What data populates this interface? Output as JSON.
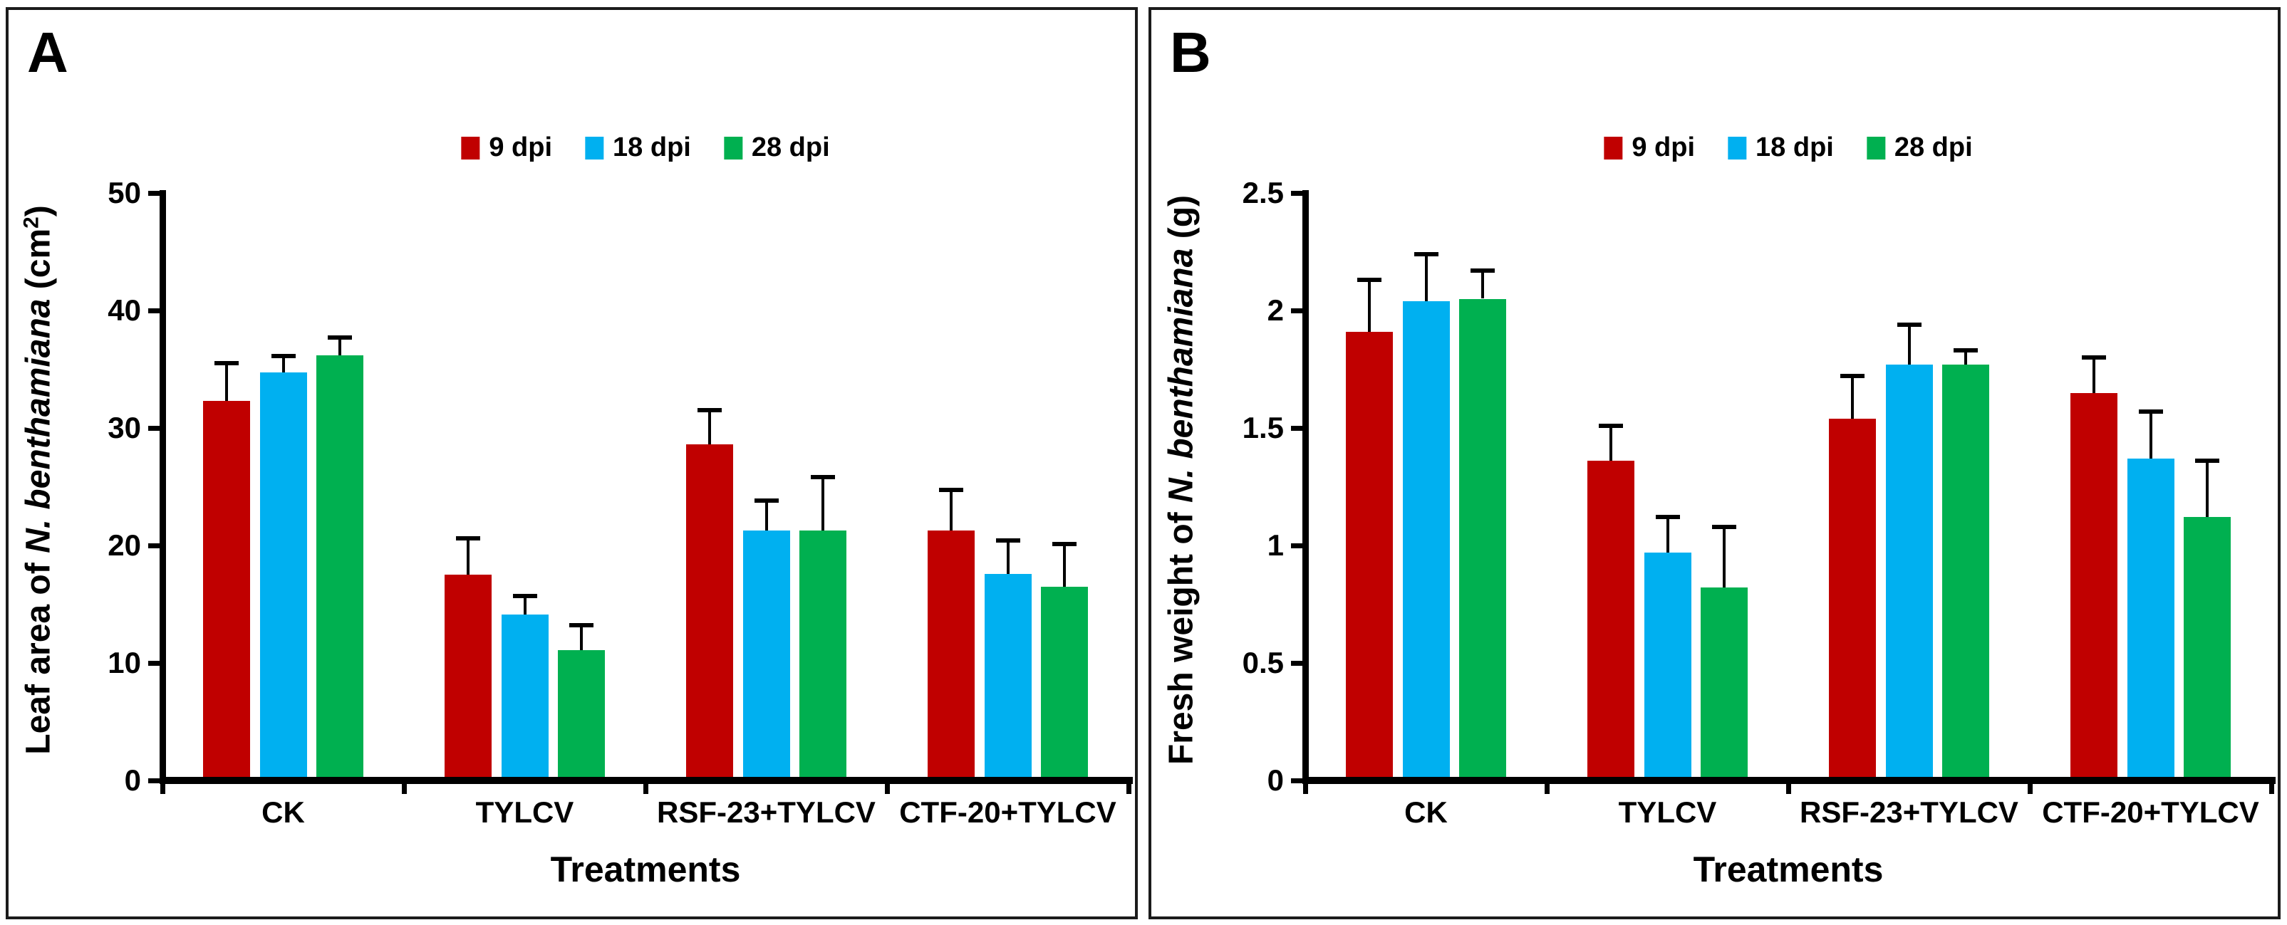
{
  "figure": {
    "background": "#ffffff",
    "border_color": "#1b1b1b",
    "axis_color": "#000000",
    "series_colors": {
      "9 dpi": "#C00000",
      "18 dpi": "#00B0F0",
      "28 dpi": "#00B050"
    }
  },
  "chart_data": [
    {
      "type": "bar",
      "panel": "A",
      "ylabel_plain": "Leaf area of N. benthamiana (cm2)",
      "ylabel_parts": [
        {
          "t": "Leaf area of ",
          "s": "n"
        },
        {
          "t": "N. benthamiana",
          "s": "i"
        },
        {
          "t": " (cm",
          "s": "n"
        },
        {
          "t": "2",
          "s": "sup"
        },
        {
          "t": ")",
          "s": "n"
        }
      ],
      "xlabel": "Treatments",
      "categories": [
        "CK",
        "TYLCV",
        "RSF-23+TYLCV",
        "CTF-20+TYLCV"
      ],
      "series": [
        {
          "name": "9 dpi",
          "color": "#C00000",
          "values": [
            32.3,
            17.5,
            28.6,
            21.3
          ],
          "errors": [
            3.2,
            3.1,
            2.9,
            3.4
          ]
        },
        {
          "name": "18 dpi",
          "color": "#00B0F0",
          "values": [
            34.7,
            14.1,
            21.3,
            17.6
          ],
          "errors": [
            1.4,
            1.6,
            2.5,
            2.8
          ]
        },
        {
          "name": "28 dpi",
          "color": "#00B050",
          "values": [
            36.2,
            11.1,
            21.3,
            16.5
          ],
          "errors": [
            1.5,
            2.1,
            4.5,
            3.6
          ]
        }
      ],
      "ylim": [
        0,
        50
      ],
      "yticks": [
        {
          "value": 0,
          "label": "0"
        },
        {
          "value": 10,
          "label": "10"
        },
        {
          "value": 20,
          "label": "20"
        },
        {
          "value": 30,
          "label": "30"
        },
        {
          "value": 40,
          "label": "40"
        },
        {
          "value": 50,
          "label": "50"
        }
      ],
      "legend_position": "top-center",
      "grid": false
    },
    {
      "type": "bar",
      "panel": "B",
      "ylabel_plain": "Fresh weight of N. benthamiana (g)",
      "ylabel_parts": [
        {
          "t": "Fresh weight of ",
          "s": "n"
        },
        {
          "t": "N. benthamiana",
          "s": "i"
        },
        {
          "t": " (g)",
          "s": "n"
        }
      ],
      "xlabel": "Treatments",
      "categories": [
        "CK",
        "TYLCV",
        "RSF-23+TYLCV",
        "CTF-20+TYLCV"
      ],
      "series": [
        {
          "name": "9 dpi",
          "color": "#C00000",
          "values": [
            1.91,
            1.36,
            1.54,
            1.65
          ],
          "errors": [
            0.22,
            0.15,
            0.18,
            0.15
          ]
        },
        {
          "name": "18 dpi",
          "color": "#00B0F0",
          "values": [
            2.04,
            0.97,
            1.77,
            1.37
          ],
          "errors": [
            0.2,
            0.15,
            0.17,
            0.2
          ]
        },
        {
          "name": "28 dpi",
          "color": "#00B050",
          "values": [
            2.05,
            0.82,
            1.77,
            1.12
          ],
          "errors": [
            0.12,
            0.26,
            0.06,
            0.24
          ]
        }
      ],
      "ylim": [
        0,
        2.5
      ],
      "yticks": [
        {
          "value": 0,
          "label": "0"
        },
        {
          "value": 0.5,
          "label": "0.5"
        },
        {
          "value": 1,
          "label": "1"
        },
        {
          "value": 1.5,
          "label": "1.5"
        },
        {
          "value": 2,
          "label": "2"
        },
        {
          "value": 2.5,
          "label": "2.5"
        }
      ],
      "legend_position": "top-center",
      "grid": false
    }
  ]
}
